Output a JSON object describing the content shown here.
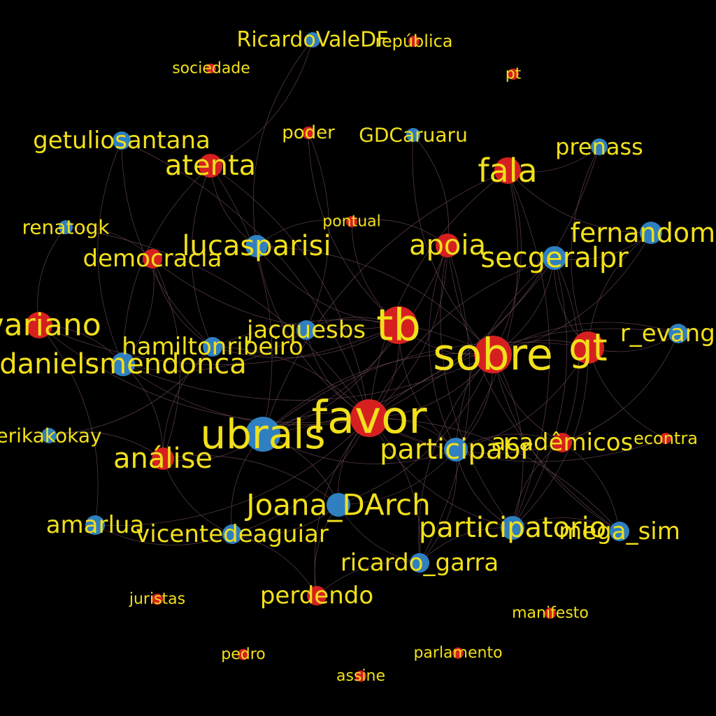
{
  "colors": {
    "background": "#000000",
    "term_node": "#d62020",
    "user_node": "#2f7fc1",
    "label": "#f2e01a",
    "edge": "#6e4a5a"
  },
  "nodes": [
    {
      "id": "RicardoValeDF",
      "label": "RicardoValeDF",
      "group": "user"
    },
    {
      "id": "república",
      "label": "república",
      "group": "term"
    },
    {
      "id": "sociedade",
      "label": "sociedade",
      "group": "term"
    },
    {
      "id": "pt",
      "label": "pt",
      "group": "term"
    },
    {
      "id": "getuliosantana",
      "label": "getuliosantana",
      "group": "user"
    },
    {
      "id": "poder",
      "label": "poder",
      "group": "term"
    },
    {
      "id": "GDCaruaru",
      "label": "GDCaruaru",
      "group": "user"
    },
    {
      "id": "prenass",
      "label": "prenass",
      "group": "user"
    },
    {
      "id": "atenta",
      "label": "atenta",
      "group": "term"
    },
    {
      "id": "fala",
      "label": "fala",
      "group": "term"
    },
    {
      "id": "renatogk",
      "label": "renatogk",
      "group": "user"
    },
    {
      "id": "pontual",
      "label": "pontual",
      "group": "term"
    },
    {
      "id": "fernandoma",
      "label": "fernandoma",
      "group": "user"
    },
    {
      "id": "lucasparisi",
      "label": "lucasparisi",
      "group": "user"
    },
    {
      "id": "apoia",
      "label": "apoia",
      "group": "term"
    },
    {
      "id": "democracia",
      "label": "democracia",
      "group": "term"
    },
    {
      "id": "secgeralpr",
      "label": "secgeralpr",
      "group": "user"
    },
    {
      "id": "ivariano",
      "label": "ivariano",
      "group": "term"
    },
    {
      "id": "tb",
      "label": "tb",
      "group": "term"
    },
    {
      "id": "jacquesbs",
      "label": "jacquesbs",
      "group": "user"
    },
    {
      "id": "r_evangel",
      "label": "r_evangel",
      "group": "user"
    },
    {
      "id": "gt",
      "label": "gt",
      "group": "term"
    },
    {
      "id": "sobre",
      "label": "sobre",
      "group": "term"
    },
    {
      "id": "hamiltonribeiro",
      "label": "hamiltonribeiro",
      "group": "user"
    },
    {
      "id": "danielsmendonca",
      "label": "danielsmendonca",
      "group": "user"
    },
    {
      "id": "favor",
      "label": "favor",
      "group": "term"
    },
    {
      "id": "ubrals",
      "label": "ubrals",
      "group": "user"
    },
    {
      "id": "erikakokay",
      "label": "erikakokay",
      "group": "user"
    },
    {
      "id": "acadêmicos",
      "label": "acadêmicos",
      "group": "term"
    },
    {
      "id": "econtra",
      "label": "econtra",
      "group": "term"
    },
    {
      "id": "participabr",
      "label": "participabr",
      "group": "user"
    },
    {
      "id": "análise",
      "label": "análise",
      "group": "term"
    },
    {
      "id": "Joana_DArch",
      "label": "Joana_DArch",
      "group": "user"
    },
    {
      "id": "amarlua",
      "label": "amarlua",
      "group": "user"
    },
    {
      "id": "participatorio",
      "label": "participatorio",
      "group": "user"
    },
    {
      "id": "vicentedeaguiar",
      "label": "vicentedeaguiar",
      "group": "user"
    },
    {
      "id": "mega_sim",
      "label": "mega_sim",
      "group": "user"
    },
    {
      "id": "ricardo_garra",
      "label": "ricardo_garra",
      "group": "user"
    },
    {
      "id": "juristas",
      "label": "juristas",
      "group": "term"
    },
    {
      "id": "perdendo",
      "label": "perdendo",
      "group": "term"
    },
    {
      "id": "manifesto",
      "label": "manifesto",
      "group": "term"
    },
    {
      "id": "pedro",
      "label": "pedro",
      "group": "term"
    },
    {
      "id": "parlamento",
      "label": "parlamento",
      "group": "term"
    },
    {
      "id": "assine",
      "label": "assine",
      "group": "term"
    }
  ],
  "edges": [
    [
      "RicardoValeDF",
      "lucasparisi"
    ],
    [
      "RicardoValeDF",
      "atenta"
    ],
    [
      "getuliosantana",
      "hamiltonribeiro"
    ],
    [
      "getuliosantana",
      "favor"
    ],
    [
      "getuliosantana",
      "danielsmendonca"
    ],
    [
      "poder",
      "jacquesbs"
    ],
    [
      "poder",
      "tb"
    ],
    [
      "GDCaruaru",
      "apoia"
    ],
    [
      "GDCaruaru",
      "sobre"
    ],
    [
      "prenass",
      "fala"
    ],
    [
      "prenass",
      "gt"
    ],
    [
      "prenass",
      "favor"
    ],
    [
      "atenta",
      "lucasparisi"
    ],
    [
      "atenta",
      "favor"
    ],
    [
      "atenta",
      "hamiltonribeiro"
    ],
    [
      "atenta",
      "ubrals"
    ],
    [
      "atenta",
      "danielsmendonca"
    ],
    [
      "fala",
      "sobre"
    ],
    [
      "fala",
      "favor"
    ],
    [
      "fala",
      "participabr"
    ],
    [
      "fala",
      "fernandoma"
    ],
    [
      "fala",
      "participatorio"
    ],
    [
      "fala",
      "ubrals"
    ],
    [
      "renatogk",
      "democracia"
    ],
    [
      "renatogk",
      "ivariano"
    ],
    [
      "renatogk",
      "favor"
    ],
    [
      "pontual",
      "lucasparisi"
    ],
    [
      "pontual",
      "apoia"
    ],
    [
      "pontual",
      "tb"
    ],
    [
      "fernandoma",
      "sobre"
    ],
    [
      "fernandoma",
      "gt"
    ],
    [
      "fernandoma",
      "secgeralpr"
    ],
    [
      "lucasparisi",
      "favor"
    ],
    [
      "lucasparisi",
      "sobre"
    ],
    [
      "lucasparisi",
      "tb"
    ],
    [
      "apoia",
      "favor"
    ],
    [
      "apoia",
      "participabr"
    ],
    [
      "apoia",
      "ubrals"
    ],
    [
      "apoia",
      "participatorio"
    ],
    [
      "apoia",
      "ricardo_garra"
    ],
    [
      "apoia",
      "mega_sim"
    ],
    [
      "democracia",
      "danielsmendonca"
    ],
    [
      "democracia",
      "hamiltonribeiro"
    ],
    [
      "democracia",
      "análise"
    ],
    [
      "democracia",
      "tb"
    ],
    [
      "secgeralpr",
      "sobre"
    ],
    [
      "secgeralpr",
      "favor"
    ],
    [
      "secgeralpr",
      "acadêmicos"
    ],
    [
      "secgeralpr",
      "participabr"
    ],
    [
      "secgeralpr",
      "ubrals"
    ],
    [
      "secgeralpr",
      "gt"
    ],
    [
      "secgeralpr",
      "participatorio"
    ],
    [
      "ivariano",
      "favor"
    ],
    [
      "ivariano",
      "danielsmendonca"
    ],
    [
      "ivariano",
      "tb"
    ],
    [
      "ivariano",
      "amarlua"
    ],
    [
      "tb",
      "sobre"
    ],
    [
      "tb",
      "favor"
    ],
    [
      "tb",
      "jacquesbs"
    ],
    [
      "tb",
      "ubrals"
    ],
    [
      "tb",
      "participabr"
    ],
    [
      "tb",
      "hamiltonribeiro"
    ],
    [
      "jacquesbs",
      "favor"
    ],
    [
      "jacquesbs",
      "danielsmendonca"
    ],
    [
      "r_evangel",
      "sobre"
    ],
    [
      "r_evangel",
      "gt"
    ],
    [
      "r_evangel",
      "favor"
    ],
    [
      "r_evangel",
      "acadêmicos"
    ],
    [
      "gt",
      "sobre"
    ],
    [
      "gt",
      "participabr"
    ],
    [
      "gt",
      "ubrals"
    ],
    [
      "gt",
      "participatorio"
    ],
    [
      "gt",
      "econtra"
    ],
    [
      "sobre",
      "favor"
    ],
    [
      "sobre",
      "ubrals"
    ],
    [
      "sobre",
      "participabr"
    ],
    [
      "sobre",
      "acadêmicos"
    ],
    [
      "sobre",
      "participatorio"
    ],
    [
      "sobre",
      "mega_sim"
    ],
    [
      "sobre",
      "Joana_DArch"
    ],
    [
      "sobre",
      "ricardo_garra"
    ],
    [
      "sobre",
      "danielsmendonca"
    ],
    [
      "sobre",
      "hamiltonribeiro"
    ],
    [
      "hamiltonribeiro",
      "favor"
    ],
    [
      "hamiltonribeiro",
      "análise"
    ],
    [
      "hamiltonribeiro",
      "erikakokay"
    ],
    [
      "danielsmendonca",
      "favor"
    ],
    [
      "danielsmendonca",
      "análise"
    ],
    [
      "favor",
      "ubrals"
    ],
    [
      "favor",
      "participabr"
    ],
    [
      "favor",
      "Joana_DArch"
    ],
    [
      "favor",
      "vicentedeaguiar"
    ],
    [
      "favor",
      "participatorio"
    ],
    [
      "favor",
      "ricardo_garra"
    ],
    [
      "favor",
      "acadêmicos"
    ],
    [
      "favor",
      "mega_sim"
    ],
    [
      "favor",
      "perdendo"
    ],
    [
      "favor",
      "amarlua"
    ],
    [
      "favor",
      "econtra"
    ],
    [
      "ubrals",
      "análise"
    ],
    [
      "ubrals",
      "vicentedeaguiar"
    ],
    [
      "ubrals",
      "Joana_DArch"
    ],
    [
      "ubrals",
      "participabr"
    ],
    [
      "erikakokay",
      "análise"
    ],
    [
      "acadêmicos",
      "participabr"
    ],
    [
      "acadêmicos",
      "mega_sim"
    ],
    [
      "acadêmicos",
      "participatorio"
    ],
    [
      "participabr",
      "Joana_DArch"
    ],
    [
      "participabr",
      "participatorio"
    ],
    [
      "participabr",
      "ricardo_garra"
    ],
    [
      "análise",
      "vicentedeaguiar"
    ],
    [
      "análise",
      "Joana_DArch"
    ],
    [
      "Joana_DArch",
      "perdendo"
    ],
    [
      "Joana_DArch",
      "vicentedeaguiar"
    ],
    [
      "Joana_DArch",
      "ricardo_garra"
    ],
    [
      "participatorio",
      "mega_sim"
    ],
    [
      "participatorio",
      "ricardo_garra"
    ],
    [
      "vicentedeaguiar",
      "perdendo"
    ],
    [
      "amarlua",
      "vicentedeaguiar"
    ],
    [
      "perdendo",
      "ricardo_garra"
    ]
  ]
}
